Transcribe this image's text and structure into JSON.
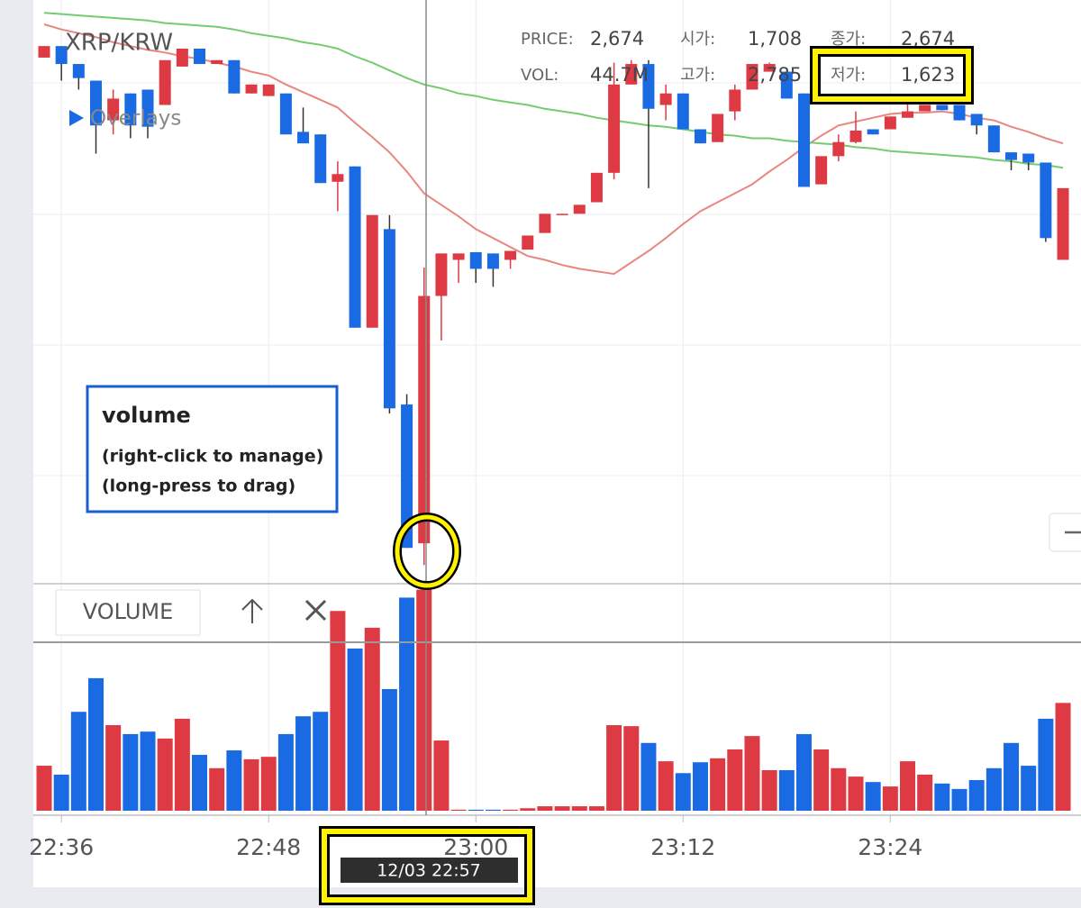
{
  "chart_data": {
    "type": "candlestick",
    "title": "XRP/KRW",
    "overlays_label": "Overlays",
    "categories": [
      null,
      "22:36",
      null,
      null,
      null,
      null,
      null,
      null,
      null,
      null,
      null,
      null,
      null,
      "22:48",
      null,
      null,
      null,
      null,
      null,
      null,
      null,
      null,
      null,
      null,
      null,
      "23:00",
      null,
      null,
      null,
      null,
      null,
      null,
      null,
      null,
      null,
      null,
      null,
      "23:12",
      null,
      null,
      null,
      null,
      null,
      null,
      null,
      null,
      null,
      null,
      null,
      "23:24",
      null,
      null,
      null,
      null,
      null,
      null,
      null,
      null,
      null,
      null
    ],
    "open": [
      3605,
      3650,
      3580,
      3515,
      3360,
      3465,
      3480,
      3420,
      3570,
      3640,
      3580,
      3595,
      3465,
      3455,
      3465,
      3315,
      3305,
      3120,
      3180,
      2550,
      2935,
      2250,
      1708,
      2674,
      2815,
      2845,
      2840,
      2815,
      2855,
      2920,
      2990,
      2995,
      3040,
      3155,
      3500,
      3580,
      3420,
      3465,
      3325,
      3275,
      3395,
      3480,
      3550,
      3550,
      3465,
      3110,
      3220,
      3275,
      3325,
      3325,
      3370,
      3395,
      3420,
      3420,
      3385,
      3340,
      3235,
      3230,
      3195,
      2815
    ],
    "high": [
      3650,
      3650,
      3580,
      3515,
      3480,
      3465,
      3480,
      3595,
      3640,
      3640,
      3595,
      3595,
      3500,
      3500,
      3465,
      3410,
      3305,
      3200,
      3180,
      2990,
      2990,
      2290,
      2785,
      2840,
      2840,
      2845,
      2840,
      2850,
      2910,
      2995,
      2995,
      3030,
      3155,
      3585,
      3595,
      3595,
      3500,
      3465,
      3325,
      3385,
      3500,
      3580,
      3585,
      3550,
      3465,
      3220,
      3305,
      3395,
      3325,
      3375,
      3430,
      3420,
      3420,
      3420,
      3385,
      3340,
      3235,
      3230,
      3195,
      3095
    ],
    "low": [
      3605,
      3515,
      3480,
      3230,
      3305,
      3290,
      3290,
      3420,
      3570,
      3580,
      3580,
      3465,
      3465,
      3455,
      3305,
      3270,
      3115,
      3005,
      2550,
      2550,
      2215,
      1690,
      1623,
      2500,
      2725,
      2725,
      2710,
      2780,
      2855,
      2920,
      2990,
      2995,
      3040,
      3130,
      3500,
      3095,
      3360,
      3325,
      3270,
      3275,
      3360,
      3480,
      3550,
      3445,
      3100,
      3110,
      3200,
      3270,
      3305,
      3325,
      3370,
      3395,
      3400,
      3360,
      3305,
      3235,
      3165,
      3165,
      2885,
      2815
    ],
    "close": [
      3650,
      3580,
      3525,
      3340,
      3445,
      3340,
      3335,
      3595,
      3640,
      3580,
      3595,
      3465,
      3500,
      3500,
      3305,
      3270,
      3115,
      3150,
      2550,
      2990,
      2235,
      1690,
      2674,
      2840,
      2840,
      2780,
      2780,
      2850,
      2910,
      2995,
      2995,
      3030,
      3155,
      3500,
      3580,
      3405,
      3465,
      3325,
      3270,
      3385,
      3480,
      3580,
      3580,
      3445,
      3100,
      3220,
      3275,
      3320,
      3305,
      3375,
      3395,
      3420,
      3400,
      3360,
      3340,
      3235,
      3205,
      3195,
      2900,
      3095
    ],
    "up_color": "#de3a43",
    "down_color": "#1a6be3",
    "ylim": [
      1550,
      3830
    ],
    "moving_averages": [
      {
        "color": "#e8877f",
        "values": [
          3735,
          3715,
          3700,
          3685,
          3665,
          3650,
          3635,
          3625,
          3610,
          3600,
          3585,
          3570,
          3550,
          3535,
          3500,
          3470,
          3440,
          3410,
          3350,
          3295,
          3235,
          3160,
          3075,
          3030,
          2985,
          2935,
          2900,
          2865,
          2830,
          2815,
          2795,
          2780,
          2770,
          2760,
          2805,
          2850,
          2900,
          2955,
          3005,
          3040,
          3075,
          3110,
          3160,
          3205,
          3255,
          3300,
          3340,
          3355,
          3370,
          3385,
          3390,
          3390,
          3395,
          3385,
          3370,
          3360,
          3335,
          3315,
          3290,
          3270
        ]
      },
      {
        "color": "#74cc6f",
        "values": [
          3780,
          3775,
          3770,
          3765,
          3760,
          3755,
          3750,
          3740,
          3735,
          3730,
          3725,
          3715,
          3700,
          3690,
          3680,
          3665,
          3655,
          3640,
          3610,
          3585,
          3555,
          3525,
          3500,
          3485,
          3465,
          3455,
          3440,
          3430,
          3420,
          3405,
          3395,
          3385,
          3370,
          3360,
          3350,
          3340,
          3335,
          3325,
          3315,
          3305,
          3300,
          3290,
          3290,
          3280,
          3275,
          3270,
          3265,
          3255,
          3250,
          3240,
          3235,
          3230,
          3225,
          3220,
          3215,
          3205,
          3200,
          3190,
          3185,
          3175
        ]
      }
    ],
    "volume": {
      "title": "VOLUME",
      "values": [
        9.1,
        7.3,
        20.0,
        26.8,
        17.3,
        15.5,
        16.0,
        14.6,
        18.6,
        11.3,
        8.6,
        12.2,
        10.4,
        10.9,
        15.5,
        19.1,
        20.0,
        40.4,
        32.8,
        37.0,
        24.6,
        43.1,
        44.7,
        14.2,
        0.2,
        0.2,
        0.2,
        0.2,
        0.5,
        0.9,
        0.9,
        0.9,
        0.9,
        17.3,
        17.1,
        13.7,
        10.0,
        7.6,
        9.8,
        10.6,
        12.4,
        15.1,
        8.2,
        8.2,
        15.5,
        12.4,
        8.6,
        6.9,
        5.8,
        4.9,
        10.0,
        7.3,
        5.5,
        4.4,
        6.2,
        8.6,
        13.7,
        9.1,
        18.6,
        21.8
      ],
      "ylim": [
        0,
        47
      ]
    },
    "crosshair_label": "12/03 22:57"
  },
  "info_panel": [
    {
      "label": "PRICE:",
      "value": "2,674"
    },
    {
      "label": "시가:",
      "value": "1,708"
    },
    {
      "label": "종가:",
      "value": "2,674"
    },
    {
      "label": "VOL:",
      "value": "44.7M"
    },
    {
      "label": "고가:",
      "value": "2,785"
    },
    {
      "label": "저가:",
      "value": "1,623"
    }
  ],
  "tooltip": {
    "title": "volume",
    "lines": [
      "(right-click to manage)",
      "(long-press to drag)"
    ]
  }
}
